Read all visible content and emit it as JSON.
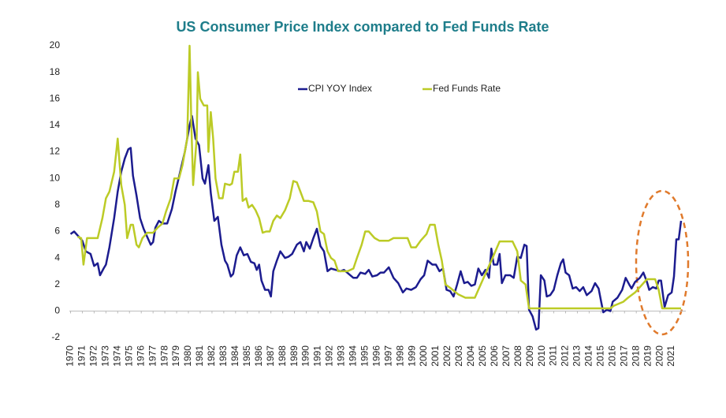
{
  "chart_data": {
    "type": "line",
    "title": "US Consumer Price Index compared to Fed Funds Rate",
    "xlim": [
      1969.9,
      2022.2
    ],
    "xticks": [
      1970,
      1971,
      1972,
      1973,
      1974,
      1975,
      1976,
      1977,
      1978,
      1979,
      1980,
      1981,
      1982,
      1983,
      1984,
      1985,
      1986,
      1987,
      1988,
      1989,
      1990,
      1991,
      1992,
      1993,
      1994,
      1995,
      1996,
      1997,
      1998,
      1999,
      2000,
      2001,
      2002,
      2003,
      2004,
      2005,
      2006,
      2007,
      2008,
      2009,
      2010,
      2011,
      2012,
      2013,
      2014,
      2015,
      2016,
      2017,
      2018,
      2019,
      2020,
      2021
    ],
    "ylim": [
      -2,
      20
    ],
    "yticks": [
      -2,
      0,
      2,
      4,
      6,
      8,
      10,
      12,
      14,
      16,
      18,
      20
    ],
    "legend": "top",
    "series": [
      {
        "name": "CPI YOY Index",
        "color": "#1c1c8f",
        "x": [
          1970,
          1970.3,
          1970.7,
          1971,
          1971.3,
          1971.7,
          1972,
          1972.3,
          1972.5,
          1972.8,
          1973,
          1973.3,
          1973.7,
          1974,
          1974.3,
          1974.6,
          1974.9,
          1975.1,
          1975.3,
          1975.6,
          1975.9,
          1976.2,
          1976.5,
          1976.8,
          1977,
          1977.2,
          1977.5,
          1977.8,
          1978.2,
          1978.6,
          1978.9,
          1979.3,
          1979.7,
          1980.1,
          1980.3,
          1980.6,
          1980.9,
          1981.2,
          1981.4,
          1981.7,
          1981.9,
          1982.2,
          1982.5,
          1982.8,
          1983.1,
          1983.3,
          1983.6,
          1983.8,
          1984.1,
          1984.4,
          1984.7,
          1985,
          1985.3,
          1985.6,
          1985.8,
          1986,
          1986.2,
          1986.5,
          1986.8,
          1987,
          1987.2,
          1987.5,
          1987.8,
          1988.2,
          1988.5,
          1988.8,
          1989.2,
          1989.5,
          1989.8,
          1990,
          1990.3,
          1990.6,
          1990.9,
          1991.2,
          1991.5,
          1991.8,
          1992.1,
          1992.5,
          1992.9,
          1993.2,
          1993.6,
          1994,
          1994.3,
          1994.6,
          1995,
          1995.3,
          1995.6,
          1996,
          1996.3,
          1996.6,
          1997,
          1997.4,
          1997.8,
          1998.2,
          1998.5,
          1998.9,
          1999.3,
          1999.7,
          2000,
          2000.3,
          2000.7,
          2001,
          2001.3,
          2001.6,
          2001.9,
          2002.2,
          2002.5,
          2002.8,
          2003.1,
          2003.4,
          2003.7,
          2004,
          2004.3,
          2004.6,
          2004.9,
          2005.2,
          2005.5,
          2005.7,
          2005.9,
          2006.2,
          2006.4,
          2006.6,
          2006.9,
          2007.3,
          2007.6,
          2007.9,
          2008.2,
          2008.5,
          2008.7,
          2008.9,
          2009.2,
          2009.5,
          2009.7,
          2009.9,
          2010.2,
          2010.4,
          2010.7,
          2011,
          2011.3,
          2011.6,
          2011.8,
          2012,
          2012.3,
          2012.6,
          2012.9,
          2013.2,
          2013.5,
          2013.8,
          2014.2,
          2014.5,
          2014.8,
          2015,
          2015.2,
          2015.5,
          2015.8,
          2016,
          2016.4,
          2016.8,
          2017.1,
          2017.4,
          2017.6,
          2017.9,
          2018.3,
          2018.6,
          2018.9,
          2019.1,
          2019.4,
          2019.7,
          2019.9,
          2020.1,
          2020.4,
          2020.7,
          2021,
          2021.2,
          2021.4,
          2021.6,
          2021.8
        ],
        "values": [
          5.8,
          6.0,
          5.6,
          5.3,
          4.5,
          4.3,
          3.4,
          3.6,
          2.7,
          3.2,
          3.5,
          4.8,
          7.0,
          9.0,
          10.5,
          11.5,
          12.2,
          12.3,
          10.2,
          8.7,
          7.0,
          6.2,
          5.6,
          5.0,
          5.2,
          6.3,
          6.8,
          6.6,
          6.6,
          7.7,
          9.0,
          10.5,
          12.0,
          14.0,
          14.7,
          13.0,
          12.5,
          10.0,
          9.6,
          11.0,
          8.9,
          6.8,
          7.1,
          5.0,
          3.8,
          3.5,
          2.6,
          2.8,
          4.2,
          4.8,
          4.2,
          4.3,
          3.7,
          3.6,
          3.1,
          3.5,
          2.3,
          1.6,
          1.6,
          1.1,
          3.0,
          3.8,
          4.5,
          4.0,
          4.1,
          4.3,
          5.0,
          5.2,
          4.5,
          5.2,
          4.7,
          5.5,
          6.2,
          4.9,
          4.5,
          3.0,
          3.2,
          3.1,
          3.0,
          3.1,
          2.8,
          2.5,
          2.5,
          2.9,
          2.8,
          3.1,
          2.6,
          2.7,
          2.9,
          2.9,
          3.3,
          2.5,
          2.1,
          1.4,
          1.7,
          1.6,
          1.8,
          2.4,
          2.7,
          3.8,
          3.5,
          3.5,
          3.0,
          3.2,
          1.6,
          1.5,
          1.1,
          2.0,
          3.0,
          2.1,
          2.2,
          1.9,
          2.0,
          3.2,
          2.7,
          3.1,
          2.5,
          4.7,
          3.5,
          3.5,
          4.3,
          2.1,
          2.7,
          2.7,
          2.5,
          4.1,
          4.0,
          5.0,
          4.9,
          0.1,
          -0.4,
          -1.4,
          -1.3,
          2.7,
          2.3,
          1.1,
          1.2,
          1.6,
          2.7,
          3.6,
          3.9,
          2.9,
          2.7,
          1.7,
          1.8,
          1.5,
          1.8,
          1.2,
          1.5,
          2.1,
          1.7,
          0.8,
          -0.1,
          0.1,
          0.0,
          0.7,
          1.0,
          1.6,
          2.5,
          2.0,
          1.7,
          2.2,
          2.5,
          2.9,
          2.2,
          1.6,
          1.8,
          1.7,
          2.3,
          2.3,
          0.3,
          1.2,
          1.4,
          2.6,
          5.4,
          5.4,
          6.8
        ]
      },
      {
        "name": "Fed Funds Rate",
        "color": "#bccb26",
        "x": [
          1970.6,
          1970.9,
          1971.1,
          1971.4,
          1972.3,
          1972.7,
          1973,
          1973.3,
          1973.7,
          1974,
          1974.3,
          1974.6,
          1974.8,
          1975.1,
          1975.3,
          1975.6,
          1975.8,
          1976.1,
          1976.5,
          1977,
          1977.4,
          1977.8,
          1978.1,
          1978.5,
          1978.8,
          1979.2,
          1979.5,
          1979.9,
          1980.1,
          1980.25,
          1980.4,
          1980.7,
          1980.8,
          1981,
          1981.3,
          1981.6,
          1981.7,
          1981.9,
          1982.1,
          1982.3,
          1982.6,
          1982.9,
          1983.1,
          1983.5,
          1983.7,
          1983.9,
          1984.2,
          1984.4,
          1984.6,
          1984.9,
          1985.1,
          1985.4,
          1985.7,
          1986,
          1986.3,
          1986.6,
          1986.9,
          1987.2,
          1987.5,
          1987.8,
          1988.2,
          1988.6,
          1988.9,
          1989.2,
          1989.5,
          1989.8,
          1990.2,
          1990.6,
          1990.9,
          1991.2,
          1991.5,
          1991.8,
          1992.1,
          1992.4,
          1992.7,
          1993.5,
          1994,
          1994.3,
          1994.7,
          1995,
          1995.3,
          1995.8,
          1996.2,
          1997,
          1997.4,
          1998.6,
          1998.9,
          1999.3,
          1999.7,
          2000.2,
          2000.5,
          2000.9,
          2001.2,
          2001.5,
          2001.8,
          2002.2,
          2002.9,
          2003.5,
          2004.3,
          2004.7,
          2005.3,
          2005.8,
          2006.4,
          2007.5,
          2007.9,
          2008.2,
          2008.6,
          2008.9,
          2015.8,
          2016.1,
          2016.9,
          2017.3,
          2017.9,
          2018.4,
          2018.9,
          2019.6,
          2019.9,
          2020.2,
          2021.8
        ],
        "values": [
          5.6,
          5.5,
          3.5,
          5.5,
          5.5,
          7.0,
          8.5,
          9.0,
          10.5,
          13.0,
          9.5,
          8.0,
          5.5,
          6.5,
          6.5,
          5.0,
          4.8,
          5.5,
          5.9,
          5.9,
          6.3,
          6.6,
          7.5,
          8.5,
          10.0,
          10.0,
          11.0,
          13.0,
          20.0,
          14.0,
          9.5,
          13.0,
          18.0,
          16.0,
          15.5,
          15.5,
          12.0,
          15.0,
          13.0,
          10.0,
          8.5,
          8.5,
          9.6,
          9.5,
          9.6,
          10.5,
          10.5,
          11.8,
          8.3,
          8.5,
          7.8,
          8.0,
          7.6,
          7.0,
          5.9,
          6.0,
          6.0,
          6.8,
          7.2,
          7.0,
          7.6,
          8.5,
          9.8,
          9.7,
          9.0,
          8.3,
          8.3,
          8.2,
          7.5,
          6.0,
          5.8,
          4.5,
          4.0,
          3.8,
          3.0,
          3.0,
          3.2,
          4.0,
          5.0,
          6.0,
          6.0,
          5.5,
          5.3,
          5.3,
          5.5,
          5.5,
          4.8,
          4.8,
          5.3,
          5.8,
          6.5,
          6.5,
          5.0,
          3.8,
          2.0,
          1.75,
          1.25,
          1.0,
          1.0,
          1.8,
          3.0,
          4.0,
          5.25,
          5.25,
          4.5,
          2.3,
          2.0,
          0.2,
          0.2,
          0.4,
          0.7,
          1.0,
          1.4,
          1.9,
          2.4,
          2.4,
          1.6,
          0.2,
          0.2
        ]
      }
    ]
  }
}
